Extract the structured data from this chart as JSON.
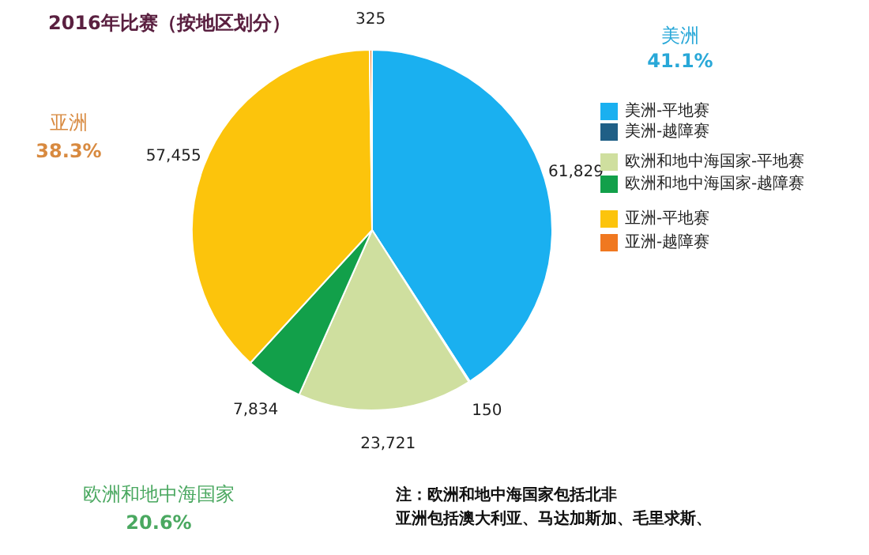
{
  "chart_data": {
    "type": "pie",
    "title": "2016年比赛（按地区划分）",
    "categories": [
      "美洲-平地赛",
      "美洲-越障赛",
      "欧洲和地中海国家-平地赛",
      "欧洲和地中海国家-越障赛",
      "亚洲-平地赛",
      "亚洲-越障赛"
    ],
    "values": [
      61829,
      150,
      23721,
      7834,
      57455,
      325
    ],
    "value_labels": [
      "61,829",
      "150",
      "23,721",
      "7,834",
      "57,455",
      "325"
    ],
    "colors": [
      "#1ab0f0",
      "#1f5f86",
      "#cfdf9f",
      "#12a04a",
      "#fcc40c",
      "#f07820"
    ],
    "legend": "right",
    "annotations": [
      "美洲",
      "41.1%",
      "亚洲",
      "38.3%",
      "欧洲和地中海国家",
      "20.6%",
      "注：欧洲和地中海国家包括北非",
      "亚洲包括澳大利亚、马达加斯加、毛里求斯、"
    ]
  }
}
